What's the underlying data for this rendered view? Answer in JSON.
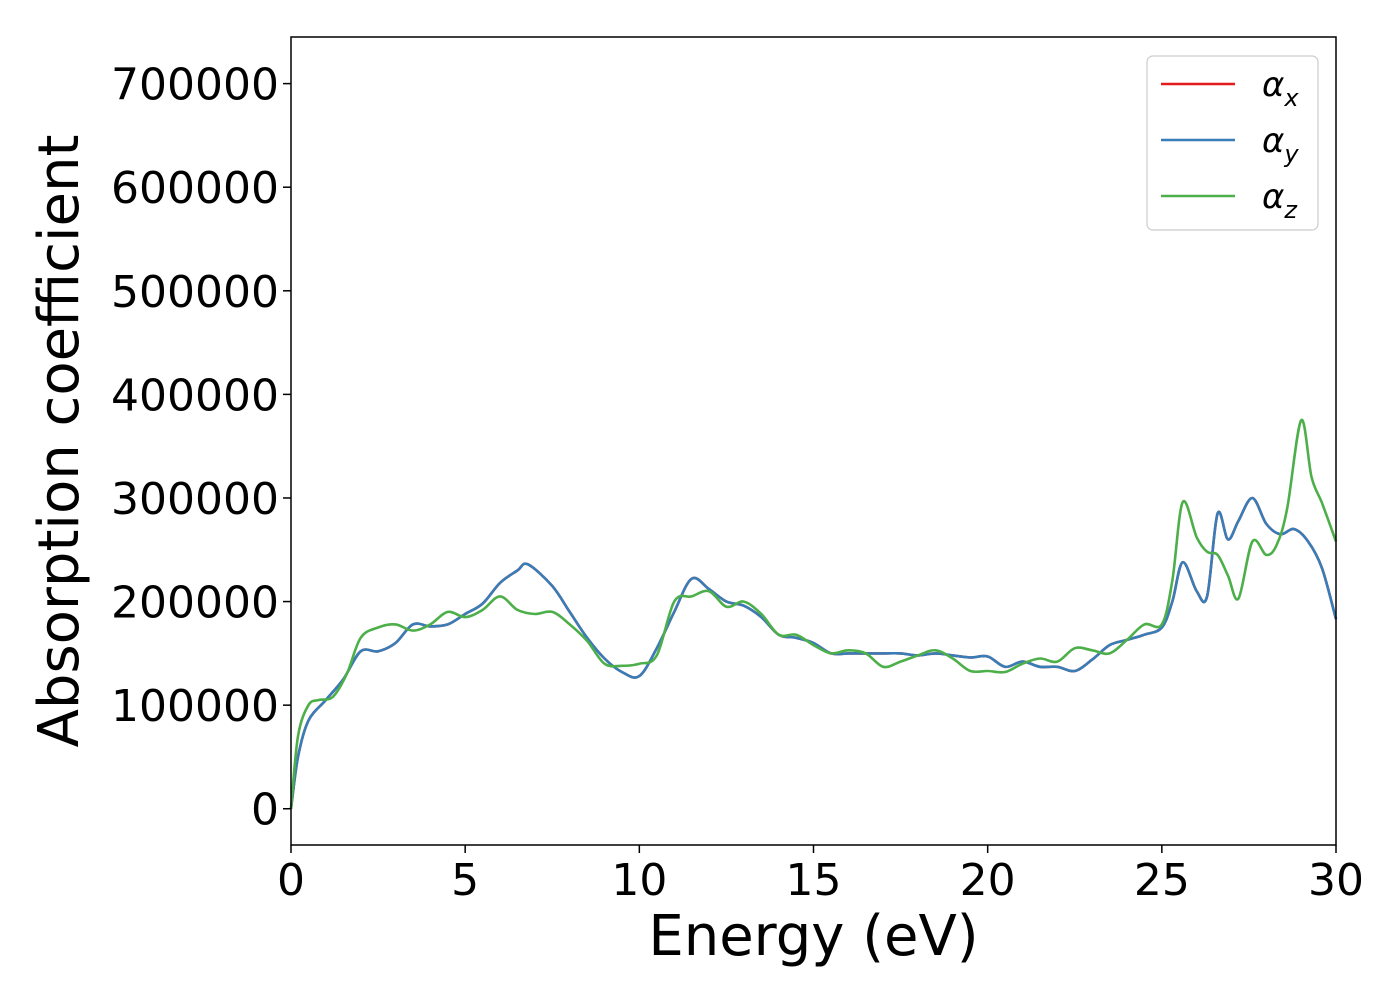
{
  "chart_data": {
    "type": "line",
    "title": "",
    "xlabel": "Energy (eV)",
    "ylabel": "Absorption coefficient",
    "xlim": [
      0,
      30
    ],
    "ylim": [
      -35000,
      745000
    ],
    "xticks": [
      0,
      5,
      10,
      15,
      20,
      25,
      30
    ],
    "yticks": [
      0,
      100000,
      200000,
      300000,
      400000,
      500000,
      600000,
      700000
    ],
    "grid": false,
    "legend_position": "top-right",
    "series": [
      {
        "name": "α",
        "sub": "x",
        "color": "#e41a1c",
        "x": [
          0,
          0.2,
          0.5,
          1.0,
          1.5,
          2.0,
          2.5,
          3.0,
          3.5,
          4.0,
          4.5,
          5.0,
          5.5,
          6.0,
          6.5,
          6.8,
          7.5,
          8.0,
          8.5,
          9.0,
          9.5,
          10.0,
          10.5,
          11.0,
          11.5,
          12.0,
          12.5,
          13.0,
          13.5,
          14.0,
          14.5,
          15.0,
          15.5,
          16.0,
          16.5,
          17.0,
          17.5,
          18.0,
          18.5,
          19.0,
          19.5,
          20.0,
          20.5,
          21.0,
          21.5,
          22.0,
          22.5,
          23.0,
          23.5,
          24.0,
          24.5,
          25.0,
          25.3,
          25.6,
          26.0,
          26.3,
          26.6,
          26.9,
          27.2,
          27.6,
          28.0,
          28.4,
          28.8,
          29.2,
          29.6,
          30.0
        ],
        "y": [
          0,
          50000,
          85000,
          105000,
          125000,
          152000,
          152000,
          160000,
          178000,
          176000,
          178000,
          188000,
          198000,
          218000,
          230000,
          236000,
          215000,
          190000,
          165000,
          145000,
          132000,
          128000,
          155000,
          190000,
          222000,
          212000,
          200000,
          196000,
          185000,
          168000,
          165000,
          160000,
          150000,
          150000,
          150000,
          150000,
          150000,
          148000,
          150000,
          148000,
          146000,
          147000,
          137000,
          142000,
          137000,
          137000,
          133000,
          144000,
          158000,
          163000,
          168000,
          175000,
          200000,
          238000,
          210000,
          205000,
          285000,
          260000,
          278000,
          300000,
          275000,
          265000,
          270000,
          258000,
          232000,
          183000
        ]
      },
      {
        "name": "α",
        "sub": "y",
        "color": "#377eb8",
        "x": [
          0,
          0.2,
          0.5,
          1.0,
          1.5,
          2.0,
          2.5,
          3.0,
          3.5,
          4.0,
          4.5,
          5.0,
          5.5,
          6.0,
          6.5,
          6.8,
          7.5,
          8.0,
          8.5,
          9.0,
          9.5,
          10.0,
          10.5,
          11.0,
          11.5,
          12.0,
          12.5,
          13.0,
          13.5,
          14.0,
          14.5,
          15.0,
          15.5,
          16.0,
          16.5,
          17.0,
          17.5,
          18.0,
          18.5,
          19.0,
          19.5,
          20.0,
          20.5,
          21.0,
          21.5,
          22.0,
          22.5,
          23.0,
          23.5,
          24.0,
          24.5,
          25.0,
          25.3,
          25.6,
          26.0,
          26.3,
          26.6,
          26.9,
          27.2,
          27.6,
          28.0,
          28.4,
          28.8,
          29.2,
          29.6,
          30.0
        ],
        "y": [
          0,
          50000,
          85000,
          105000,
          125000,
          152000,
          152000,
          160000,
          178000,
          176000,
          178000,
          188000,
          198000,
          218000,
          230000,
          236000,
          215000,
          190000,
          165000,
          145000,
          132000,
          128000,
          155000,
          190000,
          222000,
          212000,
          200000,
          196000,
          185000,
          168000,
          165000,
          160000,
          150000,
          150000,
          150000,
          150000,
          150000,
          148000,
          150000,
          148000,
          146000,
          147000,
          137000,
          142000,
          137000,
          137000,
          133000,
          144000,
          158000,
          163000,
          168000,
          175000,
          200000,
          238000,
          210000,
          205000,
          285000,
          260000,
          278000,
          300000,
          275000,
          265000,
          270000,
          258000,
          232000,
          183000
        ]
      },
      {
        "name": "α",
        "sub": "z",
        "color": "#4daf4a",
        "x": [
          0,
          0.2,
          0.5,
          0.8,
          1.2,
          1.6,
          2.0,
          2.5,
          3.0,
          3.5,
          4.0,
          4.5,
          5.0,
          5.5,
          6.0,
          6.5,
          7.0,
          7.5,
          8.0,
          8.5,
          9.0,
          9.5,
          10.0,
          10.5,
          11.0,
          11.5,
          12.0,
          12.5,
          13.0,
          13.5,
          14.0,
          14.5,
          15.0,
          15.5,
          16.0,
          16.5,
          17.0,
          17.5,
          18.0,
          18.5,
          19.0,
          19.5,
          20.0,
          20.5,
          21.0,
          21.5,
          22.0,
          22.5,
          23.0,
          23.5,
          24.0,
          24.5,
          25.0,
          25.3,
          25.6,
          26.0,
          26.3,
          26.6,
          26.9,
          27.2,
          27.6,
          28.0,
          28.3,
          28.6,
          29.0,
          29.3,
          29.6,
          30.0
        ],
        "y": [
          0,
          70000,
          100000,
          105000,
          108000,
          130000,
          165000,
          175000,
          178000,
          172000,
          178000,
          190000,
          185000,
          192000,
          205000,
          192000,
          188000,
          190000,
          178000,
          162000,
          140000,
          138000,
          140000,
          148000,
          200000,
          205000,
          210000,
          195000,
          200000,
          188000,
          168000,
          168000,
          158000,
          150000,
          153000,
          150000,
          137000,
          142000,
          148000,
          153000,
          145000,
          133000,
          133000,
          132000,
          140000,
          145000,
          142000,
          155000,
          153000,
          150000,
          163000,
          178000,
          178000,
          220000,
          296000,
          262000,
          248000,
          245000,
          225000,
          203000,
          258000,
          245000,
          255000,
          290000,
          375000,
          320000,
          295000,
          258000
        ]
      }
    ]
  }
}
